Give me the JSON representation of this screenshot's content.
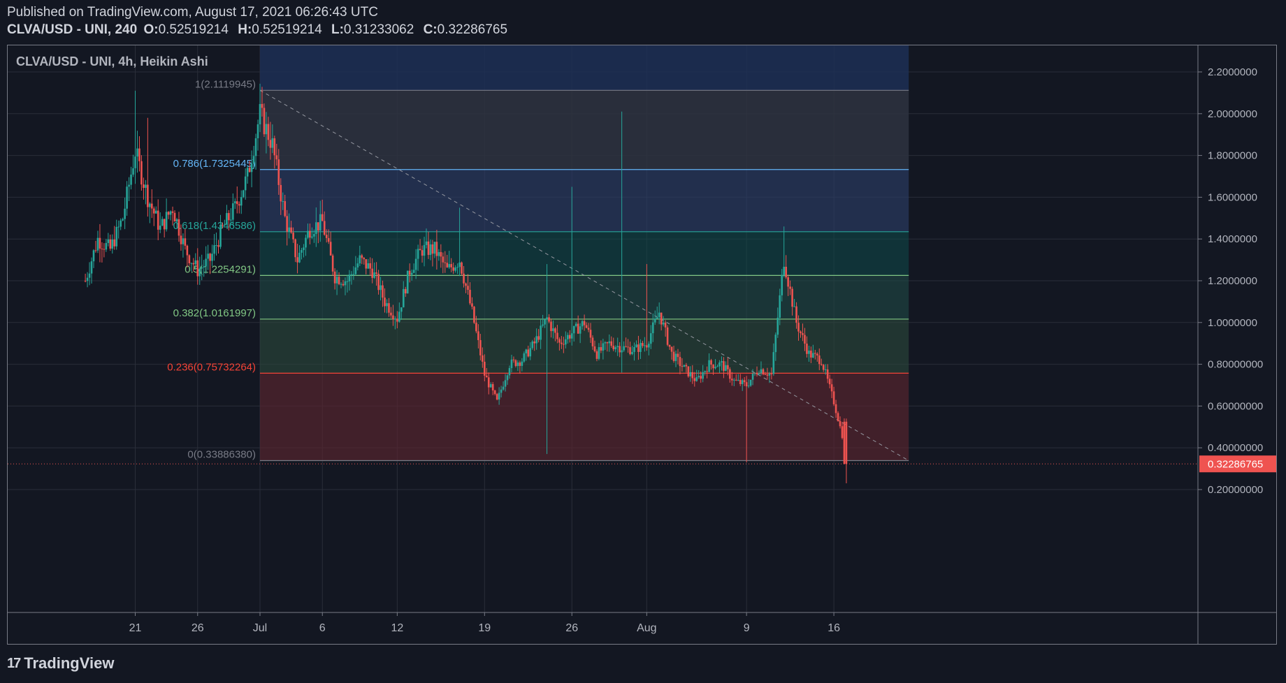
{
  "header": {
    "published": "Published on TradingView.com, August 17, 2021 06:26:43 UTC",
    "symbol": "CLVA/USD - UNI, 240",
    "o_label": "O:",
    "o_value": "0.52519214",
    "h_label": "H:",
    "h_value": "0.52519214",
    "l_label": "L:",
    "l_value": "0.31233062",
    "c_label": "C:",
    "c_value": "0.32286765"
  },
  "chart_title": "CLVA/USD - UNI, 4h, Heikin Ashi",
  "brand": {
    "logo": "17",
    "name": "TradingView"
  },
  "colors": {
    "up": "#26a69a",
    "down": "#ef5350",
    "bg": "#131722",
    "grid": "#2a2e39"
  },
  "chart_data": {
    "type": "candlestick",
    "style": "Heikin Ashi",
    "timeframe": "4h",
    "ylim": [
      0.11,
      2.32
    ],
    "y_ticks": [
      "2.2000000",
      "2.0000000",
      "1.8000000",
      "1.6000000",
      "1.4000000",
      "1.2000000",
      "1.0000000",
      "0.80000000",
      "0.60000000",
      "0.40000000",
      "0.20000000"
    ],
    "x_ticks": [
      "21",
      "26",
      "Jul",
      "6",
      "12",
      "19",
      "26",
      "Aug",
      "9",
      "16"
    ],
    "last_price": "0.32286765",
    "fib_levels": [
      {
        "ratio": "1",
        "price": "2.1119945",
        "value": 2.1119945,
        "color": "#787b86"
      },
      {
        "ratio": "0.786",
        "price": "1.7325445",
        "value": 1.7325445,
        "color": "#64b5f6"
      },
      {
        "ratio": "0.618",
        "price": "1.4346586",
        "value": 1.4346586,
        "color": "#26a69a"
      },
      {
        "ratio": "0.5",
        "price": "1.2254291",
        "value": 1.2254291,
        "color": "#81c784"
      },
      {
        "ratio": "0.382",
        "price": "1.0161997",
        "value": 1.0161997,
        "color": "#81c784"
      },
      {
        "ratio": "0.236",
        "price": "0.75732264",
        "value": 0.75732264,
        "color": "#f44336"
      },
      {
        "ratio": "0",
        "price": "0.33886380",
        "value": 0.3388638,
        "color": "#787b86"
      }
    ],
    "anchors": [
      [
        "2021-06-17",
        1.2
      ],
      [
        "2021-06-18",
        1.4
      ],
      [
        "2021-06-19",
        1.35
      ],
      [
        "2021-06-20",
        1.5
      ],
      [
        "2021-06-21",
        1.82
      ],
      [
        "2021-06-22",
        1.6
      ],
      [
        "2021-06-23",
        1.45
      ],
      [
        "2021-06-24",
        1.55
      ],
      [
        "2021-06-25",
        1.35
      ],
      [
        "2021-06-26",
        1.25
      ],
      [
        "2021-06-27",
        1.3
      ],
      [
        "2021-06-28",
        1.45
      ],
      [
        "2021-06-29",
        1.55
      ],
      [
        "2021-06-30",
        1.7
      ],
      [
        "2021-07-01",
        2.0
      ],
      [
        "2021-07-02",
        1.85
      ],
      [
        "2021-07-03",
        1.5
      ],
      [
        "2021-07-04",
        1.3
      ],
      [
        "2021-07-05",
        1.45
      ],
      [
        "2021-07-06",
        1.48
      ],
      [
        "2021-07-07",
        1.22
      ],
      [
        "2021-07-08",
        1.2
      ],
      [
        "2021-07-09",
        1.3
      ],
      [
        "2021-07-10",
        1.25
      ],
      [
        "2021-07-11",
        1.1
      ],
      [
        "2021-07-12",
        1.02
      ],
      [
        "2021-07-13",
        1.25
      ],
      [
        "2021-07-14",
        1.35
      ],
      [
        "2021-07-15",
        1.35
      ],
      [
        "2021-07-16",
        1.25
      ],
      [
        "2021-07-17",
        1.3
      ],
      [
        "2021-07-18",
        1.05
      ],
      [
        "2021-07-19",
        0.75
      ],
      [
        "2021-07-20",
        0.62
      ],
      [
        "2021-07-21",
        0.8
      ],
      [
        "2021-07-22",
        0.82
      ],
      [
        "2021-07-23",
        0.9
      ],
      [
        "2021-07-24",
        1.02
      ],
      [
        "2021-07-25",
        0.9
      ],
      [
        "2021-07-26",
        0.95
      ],
      [
        "2021-07-27",
        1.0
      ],
      [
        "2021-07-28",
        0.85
      ],
      [
        "2021-07-29",
        0.9
      ],
      [
        "2021-07-30",
        0.88
      ],
      [
        "2021-07-31",
        0.87
      ],
      [
        "2021-08-01",
        0.9
      ],
      [
        "2021-08-02",
        1.05
      ],
      [
        "2021-08-03",
        0.85
      ],
      [
        "2021-08-04",
        0.78
      ],
      [
        "2021-08-05",
        0.72
      ],
      [
        "2021-08-06",
        0.8
      ],
      [
        "2021-08-07",
        0.8
      ],
      [
        "2021-08-08",
        0.72
      ],
      [
        "2021-08-09",
        0.7
      ],
      [
        "2021-08-10",
        0.78
      ],
      [
        "2021-08-11",
        0.75
      ],
      [
        "2021-08-12",
        1.3
      ],
      [
        "2021-08-13",
        1.0
      ],
      [
        "2021-08-14",
        0.85
      ],
      [
        "2021-08-15",
        0.82
      ],
      [
        "2021-08-16",
        0.62
      ],
      [
        "2021-08-17",
        0.38
      ]
    ],
    "spikes": [
      {
        "date": "2021-06-21",
        "high": 2.11
      },
      {
        "date": "2021-06-22",
        "high": 1.98
      },
      {
        "date": "2021-07-17",
        "high": 1.55
      },
      {
        "date": "2021-07-24",
        "high": 1.28,
        "low": 0.37
      },
      {
        "date": "2021-07-26",
        "high": 1.65
      },
      {
        "date": "2021-07-30",
        "high": 2.01,
        "low": 0.76
      },
      {
        "date": "2021-08-01",
        "high": 1.28
      },
      {
        "date": "2021-08-09",
        "low": 0.33
      },
      {
        "date": "2021-08-12",
        "high": 1.46
      },
      {
        "date": "2021-08-17",
        "low": 0.23
      }
    ]
  }
}
